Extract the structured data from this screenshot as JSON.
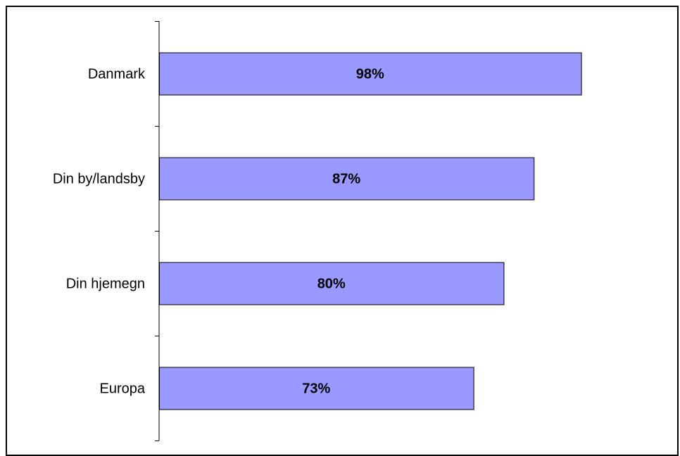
{
  "chart_data": {
    "type": "bar",
    "orientation": "horizontal",
    "categories": [
      "Danmark",
      "Din by/landsby",
      "Din hjemegn",
      "Europa"
    ],
    "values": [
      98,
      87,
      80,
      73
    ],
    "data_labels": [
      "98%",
      "87%",
      "80%",
      "73%"
    ],
    "title": "",
    "xlabel": "",
    "ylabel": "",
    "xlim": [
      0,
      100
    ],
    "grid": false,
    "legend": "none",
    "bar_color": "#9999ff",
    "bar_edge_color": "#000000"
  }
}
